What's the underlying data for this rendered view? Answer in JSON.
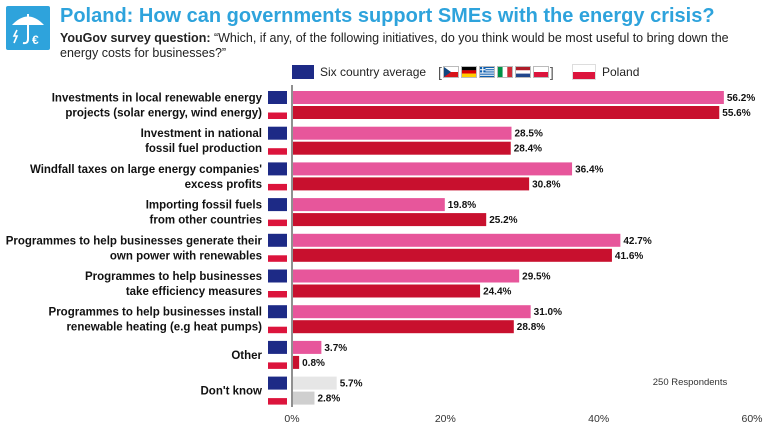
{
  "header": {
    "title": "Poland: How can governments support SMEs with the energy crisis?",
    "question_label": "YouGov survey question:",
    "question_text": " “Which, if any, of the following initiatives, do you think would be most useful to bring down the energy costs for businesses?”"
  },
  "legend": {
    "six_country": "Six country average",
    "poland": "Poland",
    "flags": [
      "cz-flag-icon",
      "de-flag-icon",
      "gr-flag-icon",
      "it-flag-icon",
      "nl-flag-icon",
      "pl-flag-icon"
    ]
  },
  "colors": {
    "accent": "#2ea3dc",
    "six_country_bar": "#e7569b",
    "poland_bar": "#c8102e",
    "dont_know_six": "#e6e6e6",
    "dont_know_pl": "#cfcfcf",
    "avg_swatch": "#1d2a86",
    "pl_swatch": "#dc143c"
  },
  "chart_data": {
    "type": "bar",
    "orientation": "horizontal",
    "categories": [
      [
        "Investments in local renewable energy",
        "projects (solar energy, wind energy)"
      ],
      [
        "Investment in national",
        "fossil fuel production"
      ],
      [
        "Windfall taxes on large energy companies'",
        "excess profits"
      ],
      [
        "Importing fossil fuels",
        "from other countries"
      ],
      [
        "Programmes to help businesses generate their",
        "own power with renewables"
      ],
      [
        "Programmes to help businesses",
        "take efficiency measures"
      ],
      [
        "Programmes to help businesses install",
        "renewable heating (e.g heat pumps)"
      ],
      [
        "Other"
      ],
      [
        "Don't know"
      ]
    ],
    "series": [
      {
        "name": "Six country average",
        "values": [
          56.2,
          28.5,
          36.4,
          19.8,
          42.7,
          29.5,
          31.0,
          3.7,
          5.7
        ]
      },
      {
        "name": "Poland",
        "values": [
          55.6,
          28.4,
          30.8,
          25.2,
          41.6,
          24.4,
          28.8,
          0.8,
          2.8
        ]
      }
    ],
    "x_ticks": [
      "0%",
      "20%",
      "40%",
      "60%"
    ],
    "xlim": [
      0,
      60
    ],
    "annotation": "250 Respondents"
  }
}
